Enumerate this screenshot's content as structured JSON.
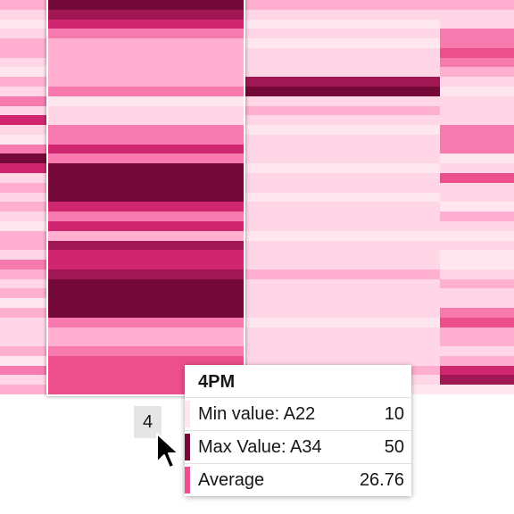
{
  "chart_data": {
    "type": "heatmap",
    "colors": [
      "#ffe6ef",
      "#ffd6e6",
      "#ffafd0",
      "#f77aaf",
      "#ed4f8d",
      "#d02670",
      "#9f1853",
      "#740937"
    ],
    "selected_column": 1,
    "columns": [
      [
        2,
        1,
        0,
        1,
        2,
        2,
        1,
        0,
        2,
        1,
        3,
        1,
        5,
        1,
        0,
        3,
        7,
        5,
        1,
        2,
        1,
        2,
        1,
        0,
        2,
        2,
        1,
        3,
        2,
        1,
        2,
        0,
        2,
        1,
        1,
        1,
        2,
        0,
        3,
        1,
        2
      ],
      [
        7,
        6,
        5,
        3,
        2,
        2,
        2,
        2,
        2,
        3,
        0,
        1,
        1,
        3,
        3,
        5,
        3,
        7,
        7,
        7,
        7,
        5,
        3,
        5,
        2,
        6,
        5,
        5,
        6,
        7,
        7,
        7,
        7,
        3,
        2,
        2,
        3,
        4,
        4,
        4,
        4
      ],
      [
        2,
        1,
        0,
        1,
        0,
        1,
        1,
        1,
        6,
        7,
        1,
        2,
        1,
        0,
        1,
        1,
        1,
        0,
        1,
        1,
        0,
        1,
        1,
        1,
        0,
        1,
        1,
        1,
        2,
        1,
        1,
        1,
        1,
        0,
        1,
        1,
        1,
        1,
        2,
        1,
        0
      ],
      [
        2,
        1,
        1,
        3,
        3,
        4,
        3,
        2,
        1,
        0,
        1,
        1,
        1,
        3,
        3,
        3,
        0,
        1,
        4,
        1,
        1,
        0,
        2,
        1,
        0,
        1,
        0,
        0,
        1,
        2,
        1,
        1,
        3,
        4,
        2,
        2,
        1,
        2,
        5,
        6,
        0
      ]
    ],
    "x_axis_tick": "4"
  },
  "tooltip": {
    "title": "4PM",
    "rows": [
      {
        "label": "Min value: A22",
        "value": "10",
        "swatch_color": "#ffe6ef"
      },
      {
        "label": "Max Value: A34",
        "value": "50",
        "swatch_color": "#740937"
      },
      {
        "label": "Average",
        "value": "26.76",
        "swatch_color": "#ed4f8d"
      }
    ]
  },
  "cursor": {
    "icon": "mouse-pointer-icon"
  }
}
